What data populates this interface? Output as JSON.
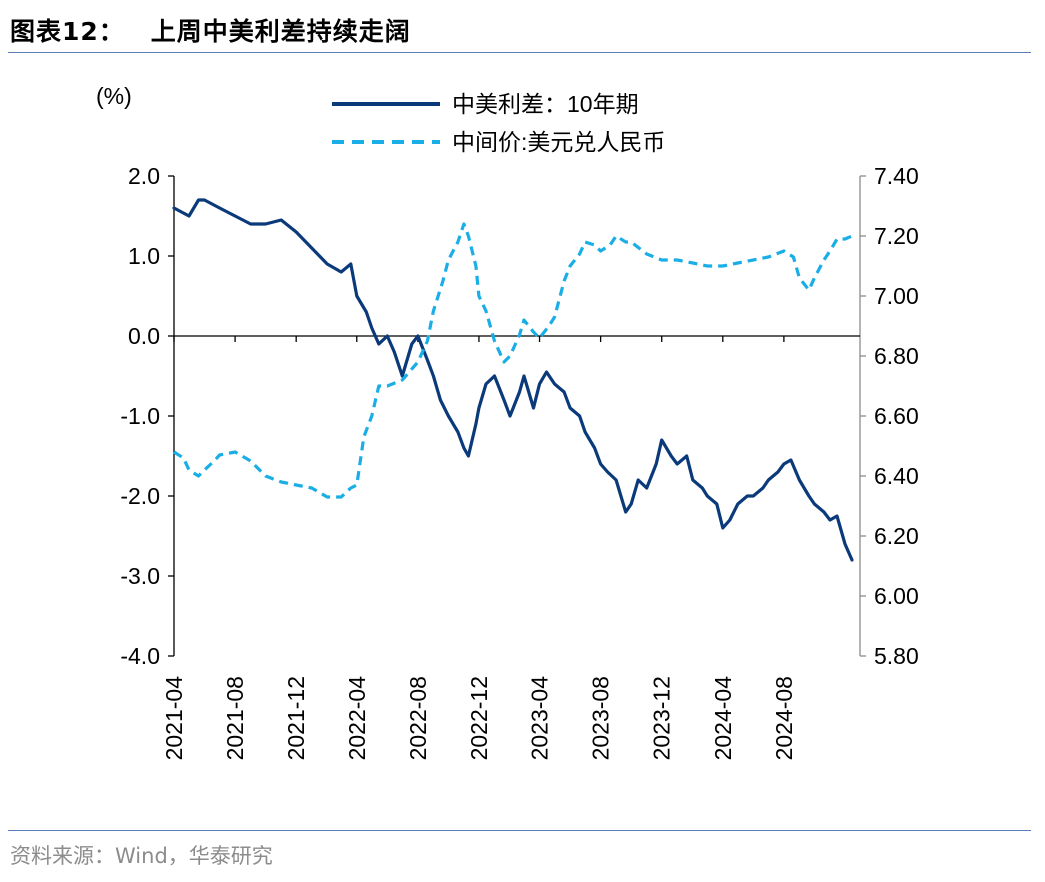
{
  "title": {
    "prefix": "图表12：",
    "text": "上周中美利差持续走阔"
  },
  "source": "资料来源：Wind，华泰研究",
  "chart_data": {
    "type": "line",
    "left_axis_unit": "(%)",
    "ylim_left": [
      -4.0,
      2.0
    ],
    "ylim_right": [
      5.8,
      7.4
    ],
    "yticks_left": [
      "2.0",
      "1.0",
      "0.0",
      "-1.0",
      "-2.0",
      "-3.0",
      "-4.0"
    ],
    "yticks_right": [
      "7.40",
      "7.20",
      "7.00",
      "6.80",
      "6.60",
      "6.40",
      "6.20",
      "6.00",
      "5.80"
    ],
    "xticks": [
      "2021-04",
      "2021-08",
      "2021-12",
      "2022-04",
      "2022-08",
      "2022-12",
      "2023-04",
      "2023-08",
      "2023-12",
      "2024-04",
      "2024-08"
    ],
    "legend": [
      {
        "label": "中美利差：10年期",
        "style": "solid",
        "color": "#0b3a7a",
        "axis": "left"
      },
      {
        "label": "中间价:美元兑人民币",
        "style": "dashed",
        "color": "#1aaee6",
        "axis": "right"
      }
    ],
    "series": [
      {
        "name": "中美利差：10年期",
        "axis": "left",
        "x": [
          "2021-04-01",
          "2021-05-01",
          "2021-05-20",
          "2021-06-01",
          "2021-07-01",
          "2021-08-01",
          "2021-09-01",
          "2021-10-01",
          "2021-11-01",
          "2021-12-01",
          "2022-01-01",
          "2022-02-01",
          "2022-03-01",
          "2022-03-20",
          "2022-04-01",
          "2022-04-20",
          "2022-05-01",
          "2022-05-15",
          "2022-06-01",
          "2022-06-15",
          "2022-07-01",
          "2022-07-20",
          "2022-08-01",
          "2022-08-20",
          "2022-09-01",
          "2022-09-15",
          "2022-10-01",
          "2022-10-20",
          "2022-11-01",
          "2022-11-10",
          "2022-11-25",
          "2022-12-01",
          "2022-12-15",
          "2023-01-01",
          "2023-01-20",
          "2023-02-01",
          "2023-02-20",
          "2023-03-01",
          "2023-03-20",
          "2023-04-01",
          "2023-04-15",
          "2023-05-01",
          "2023-05-20",
          "2023-06-01",
          "2023-06-20",
          "2023-07-01",
          "2023-07-20",
          "2023-08-01",
          "2023-08-15",
          "2023-09-01",
          "2023-09-20",
          "2023-10-01",
          "2023-10-15",
          "2023-11-01",
          "2023-11-20",
          "2023-12-01",
          "2023-12-20",
          "2024-01-01",
          "2024-01-20",
          "2024-02-01",
          "2024-02-20",
          "2024-03-01",
          "2024-03-20",
          "2024-04-01",
          "2024-04-15",
          "2024-05-01",
          "2024-05-20",
          "2024-06-01",
          "2024-06-20",
          "2024-07-01",
          "2024-07-20",
          "2024-08-01",
          "2024-08-15",
          "2024-09-01",
          "2024-09-20",
          "2024-10-01",
          "2024-10-20",
          "2024-11-01",
          "2024-11-15",
          "2024-12-01",
          "2024-12-15"
        ],
        "values": [
          1.6,
          1.5,
          1.7,
          1.7,
          1.6,
          1.5,
          1.4,
          1.4,
          1.45,
          1.3,
          1.1,
          0.9,
          0.8,
          0.9,
          0.5,
          0.3,
          0.1,
          -0.1,
          0.0,
          -0.2,
          -0.5,
          -0.1,
          0.0,
          -0.3,
          -0.5,
          -0.8,
          -1.0,
          -1.2,
          -1.4,
          -1.5,
          -1.1,
          -0.9,
          -0.6,
          -0.5,
          -0.8,
          -1.0,
          -0.7,
          -0.5,
          -0.9,
          -0.6,
          -0.45,
          -0.6,
          -0.7,
          -0.9,
          -1.0,
          -1.2,
          -1.4,
          -1.6,
          -1.7,
          -1.8,
          -2.2,
          -2.1,
          -1.8,
          -1.9,
          -1.6,
          -1.3,
          -1.5,
          -1.6,
          -1.5,
          -1.8,
          -1.9,
          -2.0,
          -2.1,
          -2.4,
          -2.3,
          -2.1,
          -2.0,
          -2.0,
          -1.9,
          -1.8,
          -1.7,
          -1.6,
          -1.55,
          -1.8,
          -2.0,
          -2.1,
          -2.2,
          -2.3,
          -2.25,
          -2.6,
          -2.8
        ]
      },
      {
        "name": "中间价:美元兑人民币",
        "axis": "right",
        "x": [
          "2021-04-01",
          "2021-04-20",
          "2021-05-01",
          "2021-05-20",
          "2021-06-01",
          "2021-06-20",
          "2021-07-01",
          "2021-08-01",
          "2021-09-01",
          "2021-10-01",
          "2021-11-01",
          "2021-12-01",
          "2022-01-01",
          "2022-02-01",
          "2022-03-01",
          "2022-03-20",
          "2022-04-01",
          "2022-04-15",
          "2022-05-01",
          "2022-05-15",
          "2022-06-01",
          "2022-07-01",
          "2022-08-01",
          "2022-08-20",
          "2022-09-01",
          "2022-09-20",
          "2022-10-01",
          "2022-10-20",
          "2022-11-01",
          "2022-11-10",
          "2022-11-25",
          "2022-12-01",
          "2022-12-15",
          "2023-01-01",
          "2023-01-20",
          "2023-02-01",
          "2023-02-20",
          "2023-03-01",
          "2023-03-20",
          "2023-04-01",
          "2023-04-20",
          "2023-05-01",
          "2023-05-20",
          "2023-06-01",
          "2023-06-20",
          "2023-07-01",
          "2023-07-20",
          "2023-08-01",
          "2023-08-20",
          "2023-09-01",
          "2023-09-20",
          "2023-10-01",
          "2023-11-01",
          "2023-12-01",
          "2024-01-01",
          "2024-02-01",
          "2024-03-01",
          "2024-04-01",
          "2024-05-01",
          "2024-06-01",
          "2024-07-01",
          "2024-08-01",
          "2024-08-20",
          "2024-09-01",
          "2024-09-20",
          "2024-10-01",
          "2024-10-20",
          "2024-11-01",
          "2024-11-15",
          "2024-12-01",
          "2024-12-15"
        ],
        "values": [
          6.48,
          6.46,
          6.42,
          6.4,
          6.42,
          6.45,
          6.47,
          6.48,
          6.45,
          6.4,
          6.38,
          6.37,
          6.36,
          6.33,
          6.33,
          6.36,
          6.37,
          6.53,
          6.6,
          6.7,
          6.7,
          6.72,
          6.78,
          6.85,
          6.95,
          7.05,
          7.12,
          7.18,
          7.24,
          7.2,
          7.1,
          7.0,
          6.95,
          6.85,
          6.78,
          6.8,
          6.87,
          6.92,
          6.88,
          6.86,
          6.9,
          6.93,
          7.05,
          7.1,
          7.14,
          7.18,
          7.17,
          7.15,
          7.17,
          7.2,
          7.18,
          7.18,
          7.14,
          7.12,
          7.12,
          7.11,
          7.1,
          7.1,
          7.11,
          7.12,
          7.13,
          7.15,
          7.13,
          7.06,
          7.02,
          7.06,
          7.12,
          7.15,
          7.19,
          7.19,
          7.2
        ]
      }
    ]
  }
}
